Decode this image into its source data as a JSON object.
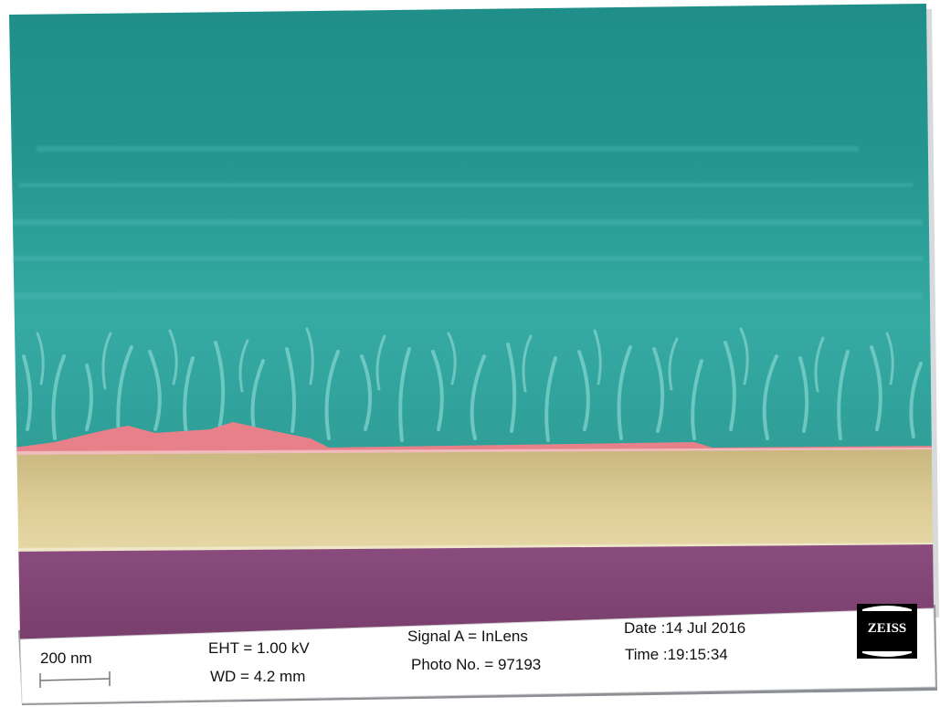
{
  "micrograph": {
    "scale_bar": {
      "label": "200 nm"
    },
    "info": {
      "eht": "EHT =  1.00 kV",
      "wd": "WD =  4.2 mm",
      "signal": "Signal A = InLens",
      "photo": "Photo No. = 97193",
      "date": "Date :14 Jul 2016",
      "time": "Time :19:15:34"
    },
    "logo": {
      "text": "ZEISS"
    },
    "colors": {
      "nanowire_layer": "#2aa09a",
      "interface_layer": "#e8808a",
      "substrate_layer": "#d8c890",
      "base_layer": "#7e4070"
    }
  }
}
